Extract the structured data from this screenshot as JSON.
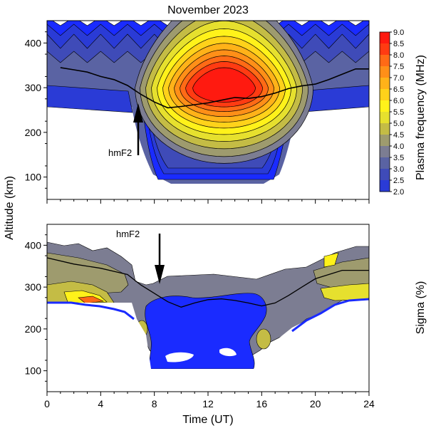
{
  "title": "November 2023",
  "colors": {
    "levels": [
      "#1a2bff",
      "#2a3bd6",
      "#3f4bb8",
      "#5a63a3",
      "#7c7d92",
      "#9e9b6e",
      "#c4bc45",
      "#e6e02e",
      "#fff21a",
      "#ffd21a",
      "#ffb219",
      "#ff8f18",
      "#ff6a16",
      "#ff3b12",
      "#ff1a10"
    ],
    "sigma_levels": [
      "#1a2bff",
      "#3f4bb8",
      "#7c7d92",
      "#9e9b6e",
      "#c4bc45",
      "#e6e02e",
      "#fff21a",
      "#ffb219",
      "#ff6a16",
      "#ff1a10"
    ]
  },
  "chart_data": [
    {
      "type": "heatmap",
      "panel": "top",
      "title": "November 2023",
      "xlabel": "",
      "ylabel": "Altitude (km)",
      "xlim": [
        0,
        24
      ],
      "ylim": [
        50,
        450
      ],
      "yticks": [
        100,
        200,
        300,
        400
      ],
      "colorbar": {
        "label": "Plasma frequency (MHz)",
        "min": 2.0,
        "max": 9.0,
        "ticks": [
          "9.0",
          "8.5",
          "8.0",
          "7.5",
          "7.0",
          "6.5",
          "6.0",
          "5.5",
          "5.0",
          "4.5",
          "4.0",
          "3.5",
          "3.0",
          "2.5",
          "2.0"
        ]
      },
      "hmF2_curve": {
        "x": [
          1,
          2,
          3,
          4,
          5,
          6,
          7,
          8,
          9,
          10,
          11,
          12,
          13,
          14,
          15,
          16,
          17,
          18,
          19,
          20,
          21,
          22,
          23,
          24
        ],
        "y": [
          345,
          340,
          335,
          325,
          318,
          305,
          285,
          268,
          255,
          258,
          262,
          266,
          272,
          278,
          276,
          280,
          288,
          298,
          304,
          308,
          318,
          330,
          342,
          342
        ]
      },
      "annotation": {
        "text": "hmF2",
        "arrow_x": 6.8,
        "arrow_from": 150,
        "arrow_to": 245
      }
    },
    {
      "type": "heatmap",
      "panel": "bottom",
      "xlabel": "Time (UT)",
      "ylabel": "Altitude (km)",
      "xlim": [
        0,
        24
      ],
      "ylim": [
        50,
        450
      ],
      "yticks": [
        100,
        200,
        300,
        400
      ],
      "xticks": [
        0,
        4,
        8,
        12,
        16,
        20,
        24
      ],
      "colorbar": {
        "label": "Sigma (%)"
      },
      "hmF2_curve": {
        "x": [
          0,
          2,
          4,
          6,
          7,
          8,
          9,
          10,
          11,
          12,
          13,
          14,
          15,
          16,
          17,
          18,
          19,
          20,
          22,
          24
        ],
        "y": [
          370,
          355,
          345,
          330,
          305,
          285,
          265,
          252,
          262,
          270,
          272,
          268,
          262,
          255,
          262,
          280,
          300,
          320,
          340,
          340
        ]
      },
      "annotation": {
        "text": "hmF2",
        "arrow_x": 8.4,
        "arrow_from": 425,
        "arrow_to": 305
      }
    }
  ]
}
